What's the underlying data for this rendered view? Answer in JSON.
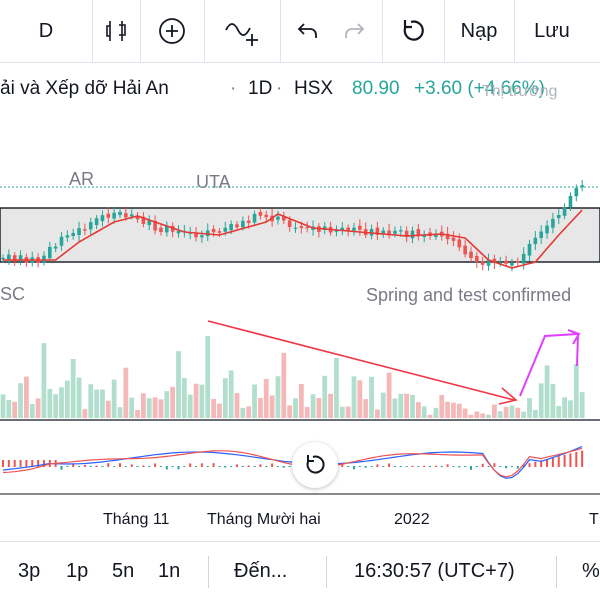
{
  "toolbar": {
    "interval": "D",
    "load_label": "Nạp",
    "save_label": "Lưu"
  },
  "symbol_bar": {
    "name": "ải và Xếp dỡ Hải An",
    "interval": "1D",
    "exchange": "HSX",
    "price": "80.90",
    "change": "+3.60 (+4.66%)",
    "overlay_text": "Thị trường",
    "sep": "·"
  },
  "annotations": {
    "ar": "AR",
    "uta": "UTA",
    "sc": "SC",
    "spring": "Spring and test confirmed"
  },
  "xaxis": {
    "labels": [
      "Tháng 11",
      "Tháng Mười hai",
      "2022",
      "T"
    ]
  },
  "bottom_bar": {
    "ranges": [
      "3p",
      "1p",
      "5n",
      "1n"
    ],
    "goto": "Đến...",
    "time": "16:30:57 (UTC+7)",
    "percent": "%"
  },
  "colors": {
    "up": "#26a69a",
    "down": "#ef5350",
    "vol_up": "#b2dfcd",
    "vol_down": "#f4b8b8",
    "range_fill": "#e7e7e7",
    "ma": "#e53935",
    "arrow_red": "#f23645",
    "arrow_magenta": "#e040fb",
    "macd_line": "#2962ff",
    "signal_line": "#ef5350"
  },
  "chart_data": {
    "type": "candlestick",
    "trading_range_annotations": [
      "AR",
      "UTA",
      "SC",
      "Spring and test confirmed"
    ],
    "last_price": 80.9,
    "change": 3.6,
    "change_percent": 4.66,
    "panes": [
      "price",
      "volume",
      "macd"
    ]
  }
}
